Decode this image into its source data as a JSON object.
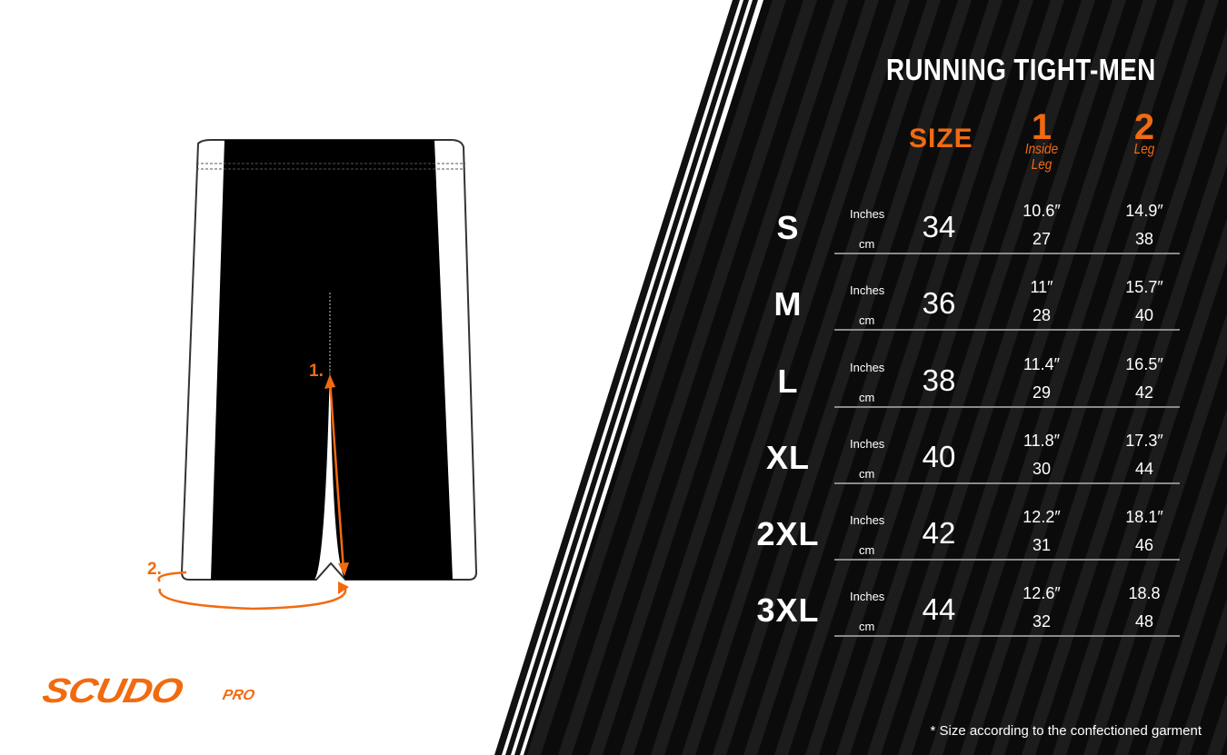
{
  "title": "RUNNING TIGHT-MEN",
  "headers": {
    "size": "SIZE",
    "col1_num": "1",
    "col1_label_a": "Inside",
    "col1_label_b": "Leg",
    "col2_num": "2",
    "col2_label": "Leg"
  },
  "units": {
    "inches": "Inches",
    "cm": "cm"
  },
  "rows": [
    {
      "size": "S",
      "number": "34",
      "inside_leg_in": "10.6″",
      "inside_leg_cm": "27",
      "leg_in": "14.9″",
      "leg_cm": "38"
    },
    {
      "size": "M",
      "number": "36",
      "inside_leg_in": "11″",
      "inside_leg_cm": "28",
      "leg_in": "15.7″",
      "leg_cm": "40"
    },
    {
      "size": "L",
      "number": "38",
      "inside_leg_in": "11.4″",
      "inside_leg_cm": "29",
      "leg_in": "16.5″",
      "leg_cm": "42"
    },
    {
      "size": "XL",
      "number": "40",
      "inside_leg_in": "11.8″",
      "inside_leg_cm": "30",
      "leg_in": "17.3″",
      "leg_cm": "44"
    },
    {
      "size": "2XL",
      "number": "42",
      "inside_leg_in": "12.2″",
      "inside_leg_cm": "31",
      "leg_in": "18.1″",
      "leg_cm": "46"
    },
    {
      "size": "3XL",
      "number": "44",
      "inside_leg_in": "12.6″",
      "inside_leg_cm": "32",
      "leg_in": "18.8",
      "leg_cm": "48"
    }
  ],
  "measure_labels": {
    "one": "1.",
    "two": "2."
  },
  "footnote": "* Size according to the confectioned garment",
  "logo": {
    "main": "SCUDO",
    "sub": "PRO"
  },
  "colors": {
    "accent": "#f26a10",
    "panel": "#0a0a0a",
    "text": "#ffffff"
  }
}
